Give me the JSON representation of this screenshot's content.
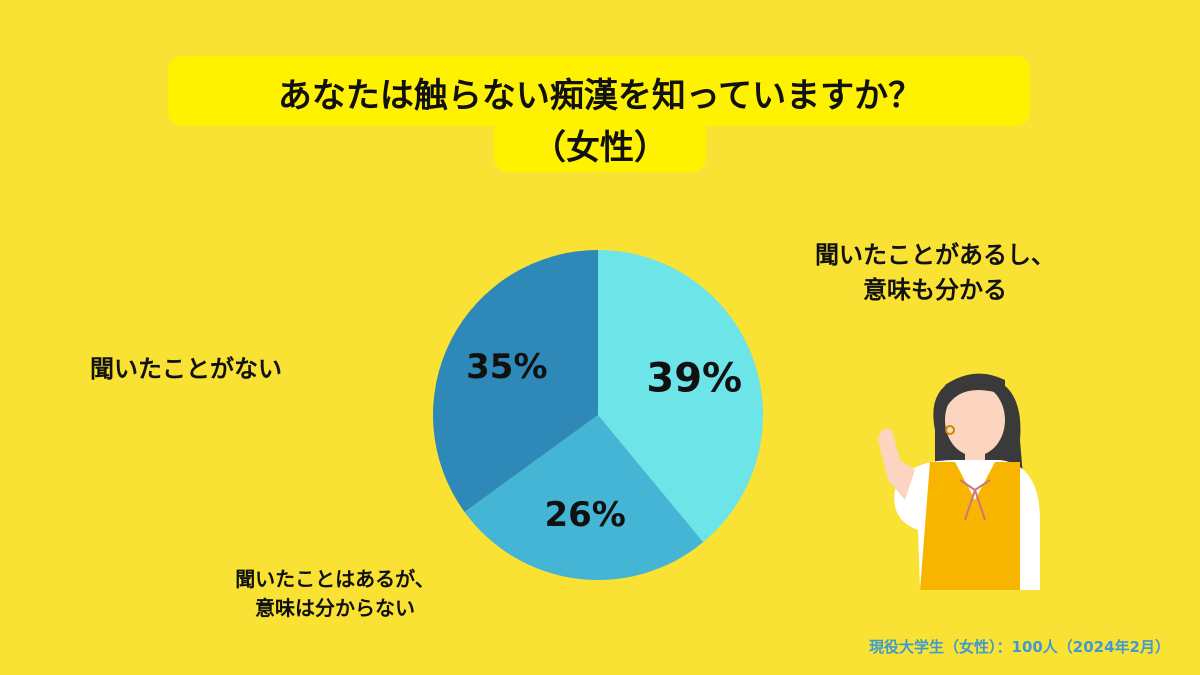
{
  "chart_data": {
    "type": "pie",
    "title": "あなたは触らない痴漢を知っていますか？",
    "subtitle": "（女性）",
    "categories": [
      "聞いたことがあるし、\n意味も分かる",
      "聞いたことはあるが、\n意味は分からない",
      "聞いたことがない"
    ],
    "values": [
      39,
      26,
      35
    ],
    "value_labels": [
      "39%",
      "26%",
      "35%"
    ],
    "colors": [
      "#6de4e8",
      "#45b5d6",
      "#2e89b8"
    ],
    "note": "現役大学生（女性）：100人（2024年2月）"
  }
}
